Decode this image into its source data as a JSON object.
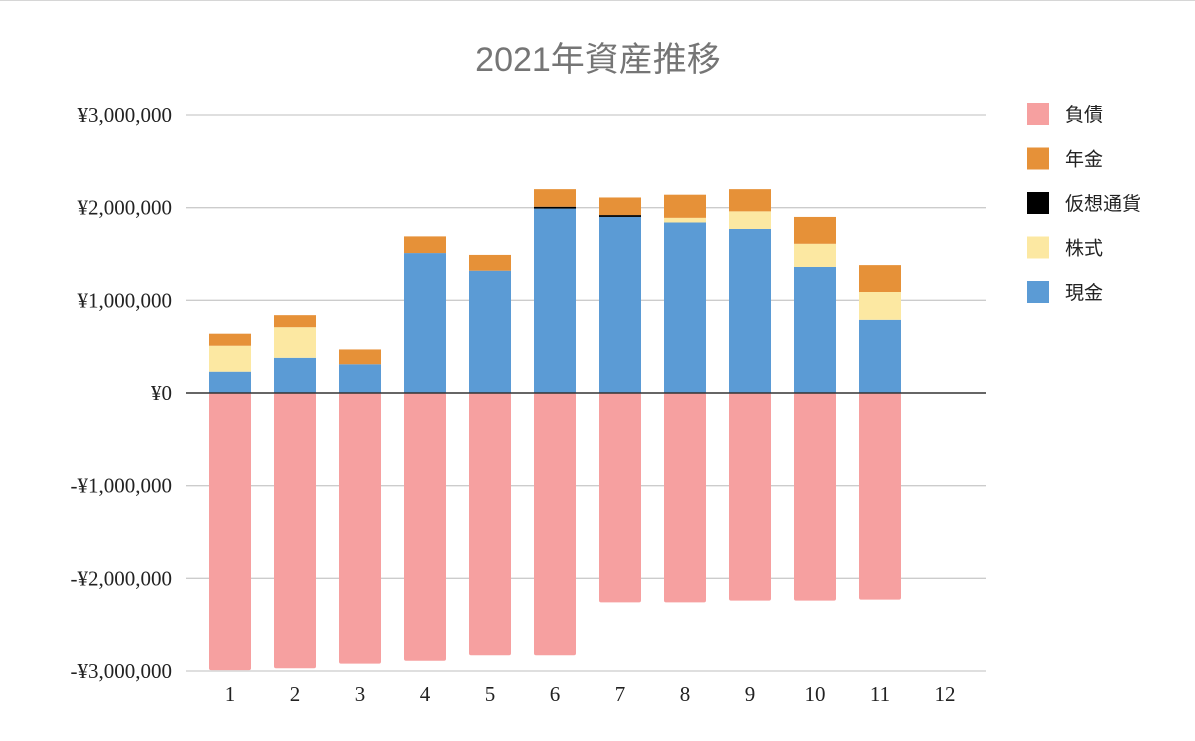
{
  "chart_data": {
    "type": "bar",
    "stacked": true,
    "title": "2021年資産推移",
    "xlabel": "",
    "ylabel": "",
    "ylim": [
      -3000000,
      3000000
    ],
    "y_ticks": [
      3000000,
      2000000,
      1000000,
      0,
      -1000000,
      -2000000,
      -3000000
    ],
    "y_tick_labels": [
      "¥3,000,000",
      "¥2,000,000",
      "¥1,000,000",
      "¥0",
      "-¥1,000,000",
      "-¥2,000,000",
      "-¥3,000,000"
    ],
    "grid": true,
    "legend_position": "right",
    "categories": [
      "1",
      "2",
      "3",
      "4",
      "5",
      "6",
      "7",
      "8",
      "9",
      "10",
      "11",
      "12"
    ],
    "series": [
      {
        "name": "負債",
        "color": "#f6a0a0",
        "values": [
          -2990000,
          -2970000,
          -2920000,
          -2890000,
          -2830000,
          -2830000,
          -2260000,
          -2260000,
          -2240000,
          -2240000,
          -2230000,
          null
        ]
      },
      {
        "name": "現金",
        "color": "#5b9bd5",
        "values": [
          230000,
          380000,
          310000,
          1510000,
          1320000,
          1990000,
          1900000,
          1840000,
          1770000,
          1360000,
          790000,
          null
        ]
      },
      {
        "name": "株式",
        "color": "#fce8a2",
        "values": [
          280000,
          330000,
          0,
          0,
          0,
          0,
          0,
          50000,
          190000,
          250000,
          300000,
          null
        ]
      },
      {
        "name": "仮想通貨",
        "color": "#000000",
        "values": [
          0,
          0,
          0,
          0,
          0,
          20000,
          20000,
          0,
          0,
          0,
          0,
          null
        ]
      },
      {
        "name": "年金",
        "color": "#e69138",
        "values": [
          130000,
          130000,
          160000,
          180000,
          170000,
          190000,
          190000,
          250000,
          240000,
          290000,
          290000,
          null
        ]
      }
    ],
    "legend_order": [
      "負債",
      "年金",
      "仮想通貨",
      "株式",
      "現金"
    ]
  }
}
